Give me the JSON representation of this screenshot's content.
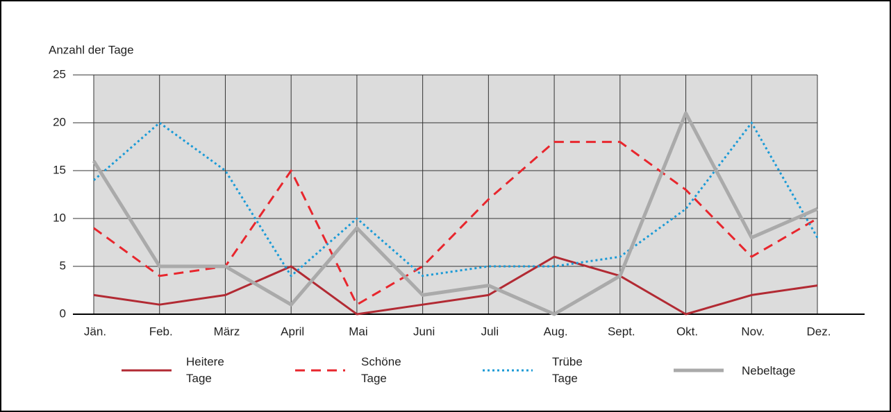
{
  "chart_data": {
    "type": "line",
    "y_label": "Anzahl der Tage",
    "categories": [
      "Jän.",
      "Feb.",
      "März",
      "April",
      "Mai",
      "Juni",
      "Juli",
      "Aug.",
      "Sept.",
      "Okt.",
      "Nov.",
      "Dez."
    ],
    "series": [
      {
        "name": "Heitere Tage",
        "color": "#b22a33",
        "style": "solid",
        "values": [
          2,
          1,
          2,
          5,
          0,
          1,
          2,
          6,
          4,
          0,
          2,
          3
        ]
      },
      {
        "name": "Schöne Tage",
        "color": "#e8262d",
        "style": "dashed",
        "values": [
          9,
          4,
          5,
          15,
          1,
          5,
          12,
          18,
          18,
          13,
          6,
          10
        ]
      },
      {
        "name": "Trübe Tage",
        "color": "#1a9ad6",
        "style": "dotted",
        "values": [
          14,
          20,
          15,
          4,
          10,
          4,
          5,
          5,
          6,
          11,
          20,
          8
        ]
      },
      {
        "name": "Nebeltage",
        "color": "#aaaaaa",
        "style": "thick",
        "values": [
          16,
          5,
          5,
          1,
          9,
          2,
          3,
          0,
          4,
          21,
          8,
          11
        ]
      }
    ],
    "ylim": [
      0,
      25
    ],
    "yticks": [
      0,
      5,
      10,
      15,
      20,
      25
    ],
    "grid": true,
    "plot_background": "#dcdcdc"
  }
}
